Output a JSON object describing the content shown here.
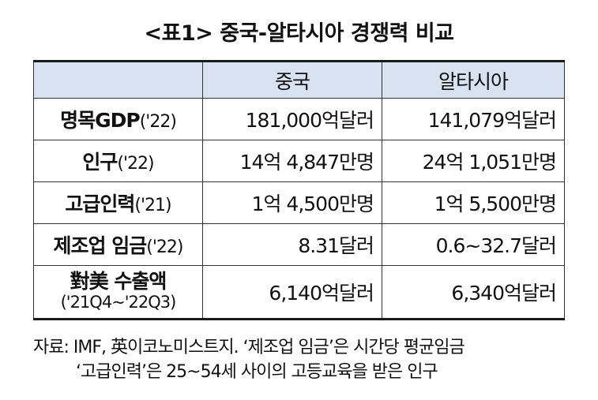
{
  "title": "<표1> 중국-알타시아 경쟁력 비교",
  "table": {
    "headers": [
      "",
      "중국",
      "알타시아"
    ],
    "rows": [
      {
        "label": "명목GDP",
        "year": "('22)",
        "china": "181,000억달러",
        "altasia": "141,079억달러"
      },
      {
        "label": "인구",
        "year": "('22)",
        "china": "14억 4,847만명",
        "altasia": "24억 1,051만명"
      },
      {
        "label": "고급인력",
        "year": "('21)",
        "china": "1억 4,500만명",
        "altasia": "1억 5,500만명"
      },
      {
        "label": "제조업 임금",
        "year": "('22)",
        "china": "8.31달러",
        "altasia": "0.6~32.7달러"
      },
      {
        "label": "對美 수출액",
        "year": "('21Q4~'22Q3)",
        "china": "6,140억달러",
        "altasia": "6,340억달러"
      }
    ]
  },
  "notes": {
    "line1": "자료: IMF, 英이코노미스트지. ‘제조업 임금’은 시간당 평균임금",
    "line2": "‘고급인력’은 25~54세 사이의 고등교육을 받은 인구"
  }
}
